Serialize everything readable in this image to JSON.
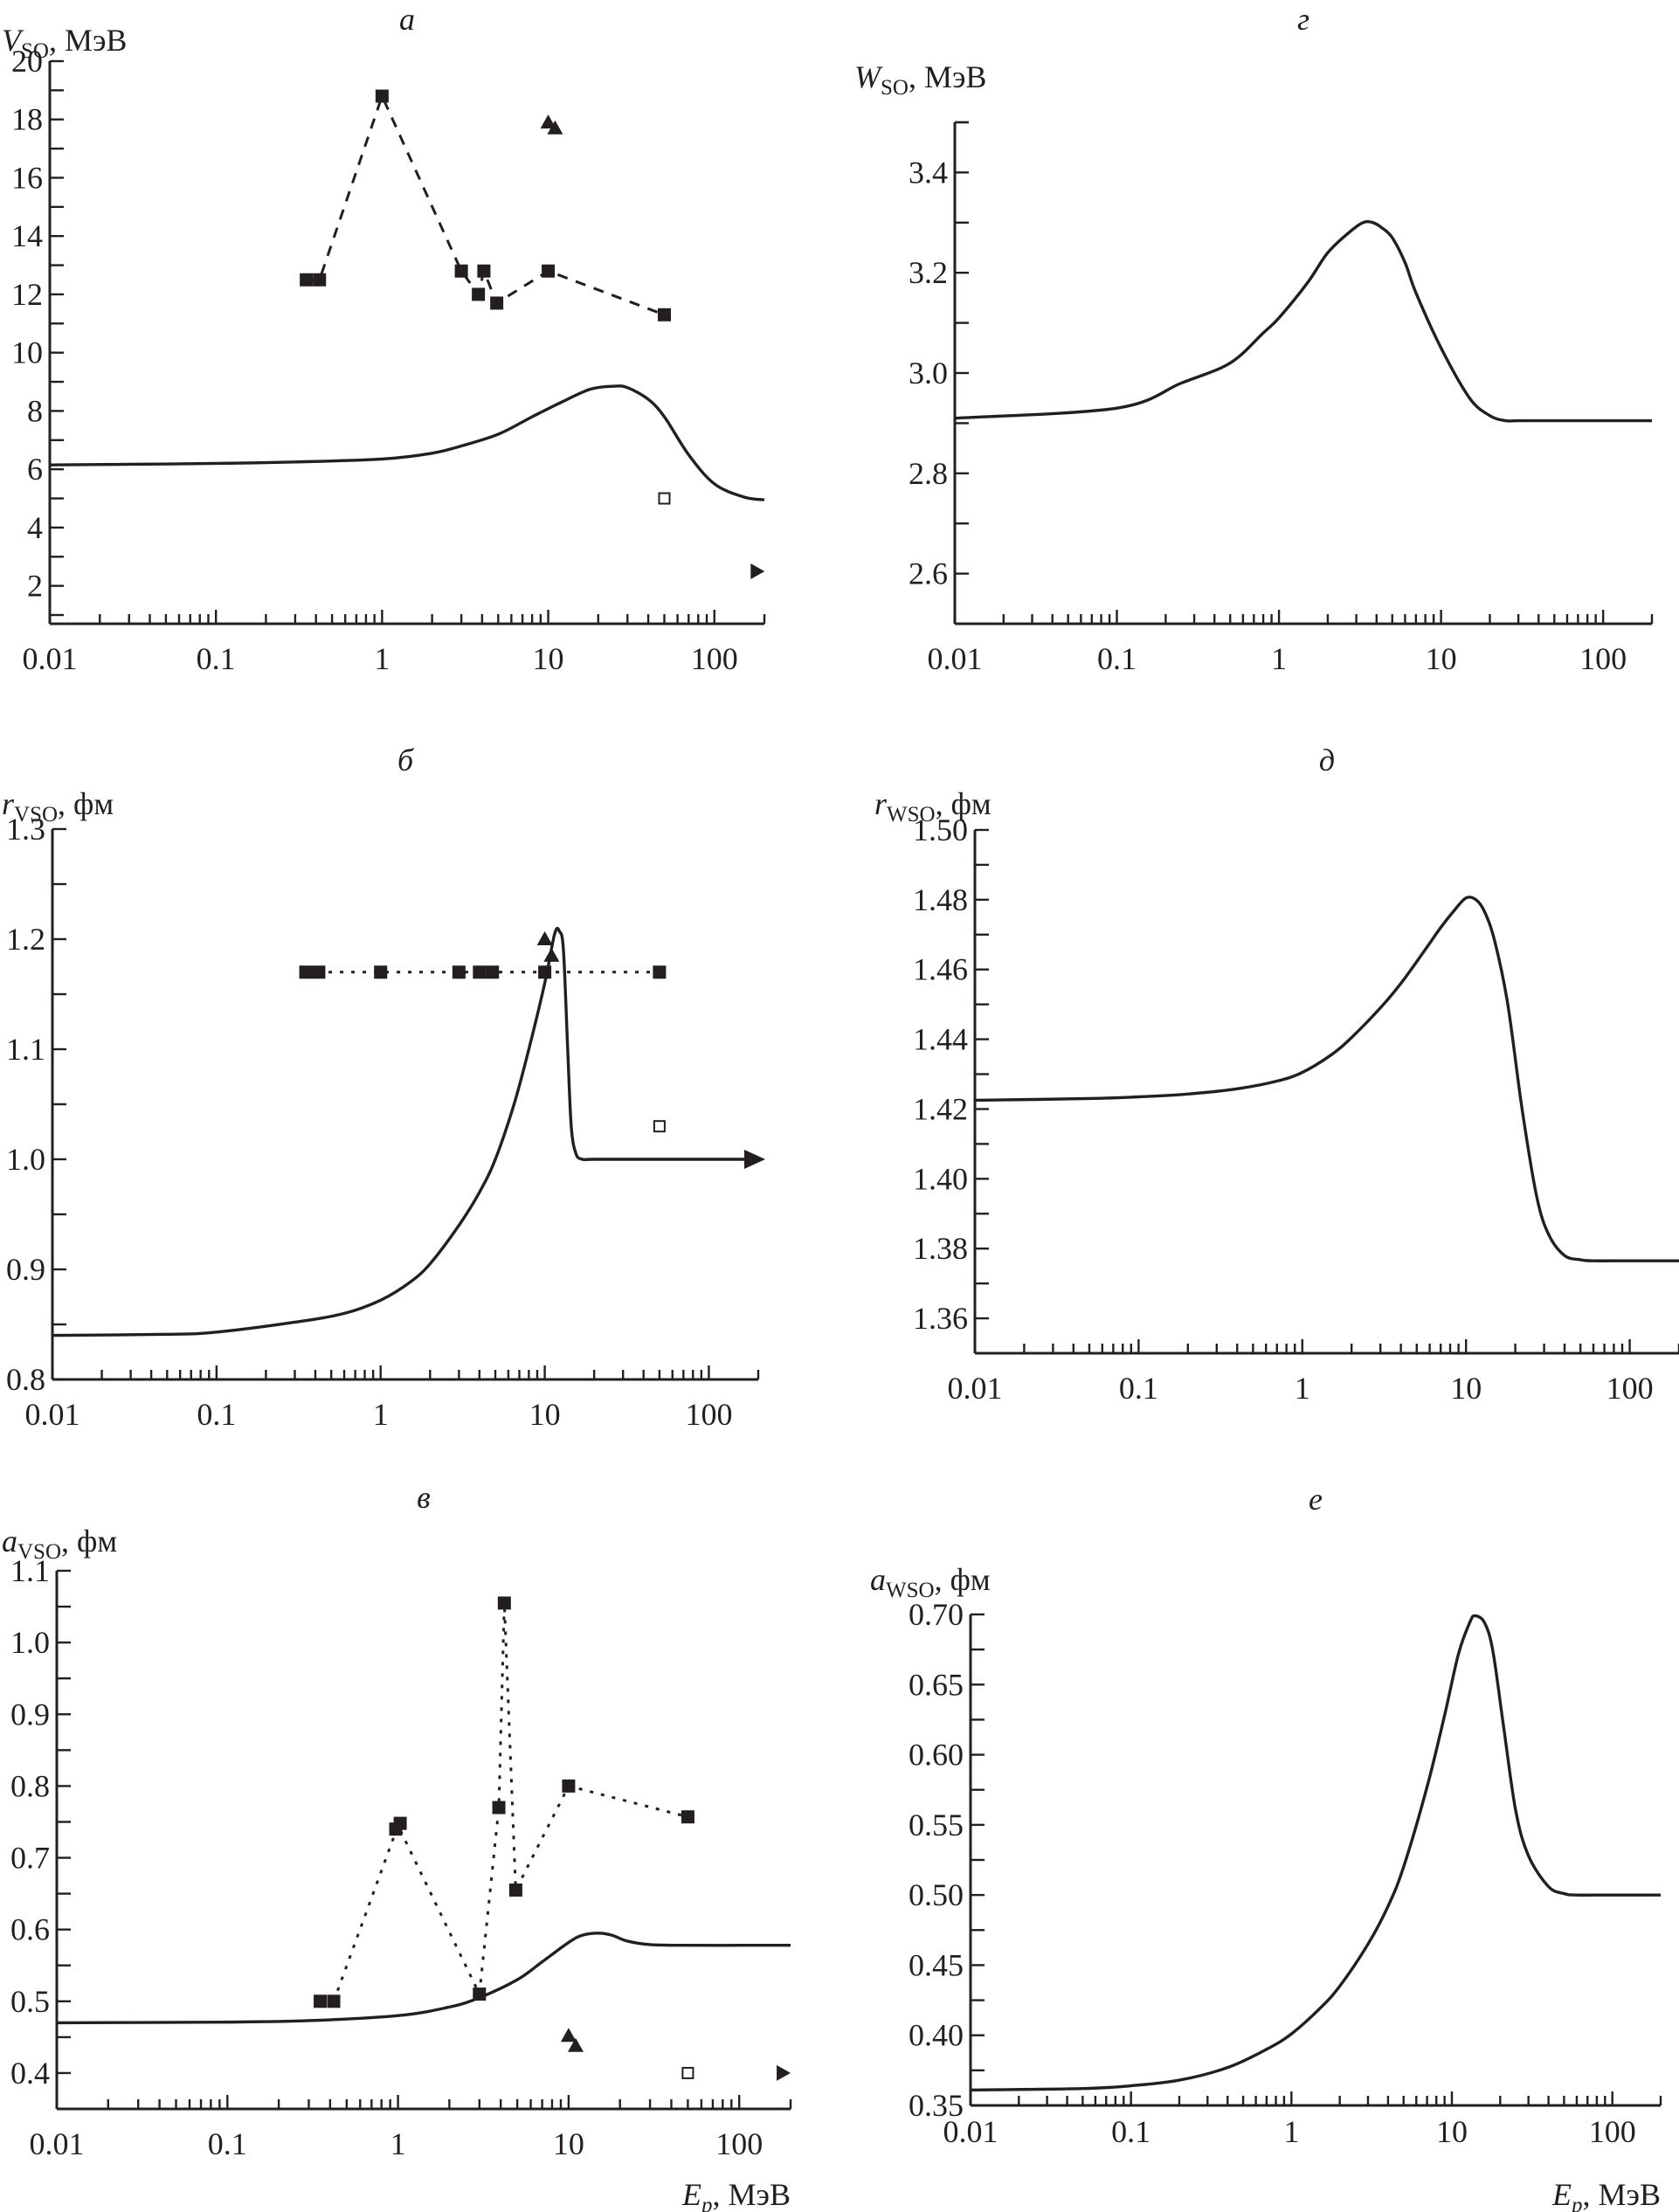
{
  "figure": {
    "panels": [
      "a",
      "g",
      "b",
      "d",
      "v",
      "e"
    ]
  },
  "chart_data": [
    {
      "id": "a",
      "type": "line",
      "panel_letter": "а",
      "ylabel_symbol": "V",
      "ylabel_sub": "SO",
      "ylabel_unit": ", МэВ",
      "xlabel_symbol": "",
      "xlabel_sub": "",
      "xlabel_unit": "",
      "xscale": "log",
      "xlim": [
        0.01,
        200
      ],
      "ylim": [
        0.7,
        20
      ],
      "xticks_major": [
        0.01,
        0.1,
        1,
        10,
        100
      ],
      "xtick_labels": [
        "0.01",
        "0.1",
        "1",
        "10",
        "100"
      ],
      "yticks_major": [
        2,
        4,
        6,
        8,
        10,
        12,
        14,
        16,
        18,
        20
      ],
      "ytick_labels": [
        "2",
        "4",
        "6",
        "8",
        "10",
        "12",
        "14",
        "16",
        "18",
        "20"
      ],
      "yticks_minor": [
        1,
        3,
        5,
        7,
        9,
        11,
        13,
        15,
        17,
        19
      ],
      "curve": {
        "name": "model",
        "x": [
          0.01,
          0.03,
          0.1,
          0.3,
          1,
          2,
          3,
          5,
          8,
          12,
          18,
          25,
          30,
          40,
          50,
          70,
          100,
          150,
          200
        ],
        "y": [
          6.15,
          6.17,
          6.2,
          6.25,
          6.35,
          6.55,
          6.8,
          7.2,
          7.8,
          8.3,
          8.75,
          8.85,
          8.8,
          8.4,
          7.8,
          6.5,
          5.5,
          5.05,
          4.95
        ]
      },
      "series": [
        {
          "name": "exp-squares",
          "marker": "filled-square",
          "line": "dashed",
          "x": [
            0.35,
            0.42,
            1.0,
            3.0,
            3.8,
            4.1,
            4.9,
            10,
            50
          ],
          "y": [
            12.5,
            12.5,
            18.8,
            12.8,
            12.0,
            12.8,
            11.7,
            12.8,
            11.3
          ],
          "path_order": [
            1,
            2,
            3,
            4,
            5,
            6,
            7,
            8,
            9
          ]
        },
        {
          "name": "exp-triangles",
          "marker": "filled-triangle-up",
          "line": "none",
          "x": [
            10,
            11
          ],
          "y": [
            17.9,
            17.7
          ]
        },
        {
          "name": "exp-open-square",
          "marker": "open-square",
          "line": "none",
          "x": [
            50
          ],
          "y": [
            5.0
          ]
        },
        {
          "name": "exp-right-triangle",
          "marker": "filled-triangle-right",
          "line": "none",
          "x": [
            180
          ],
          "y": [
            2.5
          ]
        }
      ]
    },
    {
      "id": "g",
      "type": "line",
      "panel_letter": "г",
      "ylabel_symbol": "W",
      "ylabel_sub": "SO",
      "ylabel_unit": ", МэВ",
      "xlabel_symbol": "",
      "xlabel_sub": "",
      "xlabel_unit": "",
      "xscale": "log",
      "xlim": [
        0.01,
        200
      ],
      "ylim": [
        2.5,
        3.5
      ],
      "xticks_major": [
        0.01,
        0.1,
        1,
        10,
        100
      ],
      "xtick_labels": [
        "0.01",
        "0.1",
        "1",
        "10",
        "100"
      ],
      "yticks_major": [
        2.6,
        2.8,
        3.0,
        3.2,
        3.4
      ],
      "ytick_labels": [
        "2.6",
        "2.8",
        "3.0",
        "3.2",
        "3.4"
      ],
      "yticks_minor": [
        2.7,
        2.9,
        3.1,
        3.3,
        3.5
      ],
      "curve": {
        "name": "model",
        "x": [
          0.01,
          0.1,
          0.25,
          0.5,
          0.8,
          1.0,
          1.5,
          2.0,
          2.7,
          3.3,
          3.8,
          4.3,
          5.0,
          6.0,
          7.0,
          10,
          15,
          20,
          25,
          30,
          50,
          100,
          200
        ],
        "y": [
          2.91,
          2.93,
          2.98,
          3.02,
          3.08,
          3.11,
          3.18,
          3.24,
          3.28,
          3.3,
          3.3,
          3.29,
          3.27,
          3.22,
          3.16,
          3.05,
          2.95,
          2.915,
          2.905,
          2.905,
          2.905,
          2.905,
          2.905
        ]
      },
      "series": []
    },
    {
      "id": "b",
      "type": "line",
      "panel_letter": "б",
      "ylabel_symbol": "r",
      "ylabel_sub": "VSO",
      "ylabel_unit": ", фм",
      "xlabel_symbol": "",
      "xlabel_sub": "",
      "xlabel_unit": "",
      "xscale": "log",
      "xlim": [
        0.01,
        200
      ],
      "ylim": [
        0.8,
        1.3
      ],
      "xticks_major": [
        0.01,
        0.1,
        1,
        10,
        100
      ],
      "xtick_labels": [
        "0.01",
        "0.1",
        "1",
        "10",
        "100"
      ],
      "yticks_major": [
        0.8,
        0.9,
        1.0,
        1.1,
        1.2,
        1.3
      ],
      "ytick_labels": [
        "0.8",
        "0.9",
        "1.0",
        "1.1",
        "1.2",
        "1.3"
      ],
      "yticks_minor": [
        0.85,
        0.95,
        1.05,
        1.15,
        1.25
      ],
      "curve": {
        "name": "model",
        "arrow_end": true,
        "x": [
          0.01,
          0.05,
          0.1,
          0.3,
          0.6,
          1.0,
          1.5,
          2.0,
          3.0,
          4.0,
          5.0,
          6.5,
          8.0,
          10,
          11.5,
          12.3,
          13.0,
          13.8,
          14.5,
          15.5,
          17,
          20,
          50,
          200
        ],
        "y": [
          0.84,
          0.841,
          0.843,
          0.852,
          0.86,
          0.872,
          0.888,
          0.905,
          0.94,
          0.97,
          1.0,
          1.05,
          1.1,
          1.16,
          1.205,
          1.207,
          1.19,
          1.1,
          1.03,
          1.005,
          1.0,
          1.0,
          1.0,
          1.0
        ]
      },
      "series": [
        {
          "name": "exp-squares",
          "marker": "filled-square",
          "line": "dotted",
          "x": [
            0.35,
            0.42,
            1.0,
            3.0,
            4.0,
            4.8,
            10,
            50
          ],
          "y": [
            1.17,
            1.17,
            1.17,
            1.17,
            1.17,
            1.17,
            1.17,
            1.17
          ]
        },
        {
          "name": "exp-triangles",
          "marker": "filled-triangle-up",
          "line": "none",
          "x": [
            10,
            11
          ],
          "y": [
            1.2,
            1.185
          ]
        },
        {
          "name": "exp-open-square",
          "marker": "open-square",
          "line": "none",
          "x": [
            50
          ],
          "y": [
            1.03
          ]
        }
      ]
    },
    {
      "id": "d",
      "type": "line",
      "panel_letter": "д",
      "ylabel_symbol": "r",
      "ylabel_sub": "WSO",
      "ylabel_unit": ", фм",
      "xlabel_symbol": "",
      "xlabel_sub": "",
      "xlabel_unit": "",
      "xscale": "log",
      "xlim": [
        0.01,
        200
      ],
      "ylim": [
        1.35,
        1.5
      ],
      "xticks_major": [
        0.01,
        0.1,
        1,
        10,
        100
      ],
      "xtick_labels": [
        "0.01",
        "0.1",
        "1",
        "10",
        "100"
      ],
      "yticks_major": [
        1.36,
        1.38,
        1.4,
        1.42,
        1.44,
        1.46,
        1.48,
        1.5
      ],
      "ytick_labels": [
        "1.36",
        "1.38",
        "1.40",
        "1.42",
        "1.44",
        "1.46",
        "1.48",
        "1.50"
      ],
      "yticks_minor": [
        1.37,
        1.39,
        1.41,
        1.43,
        1.45,
        1.47,
        1.49
      ],
      "curve": {
        "name": "model",
        "x": [
          0.01,
          0.05,
          0.1,
          0.2,
          0.4,
          0.7,
          1.0,
          1.5,
          2.0,
          3.0,
          4.0,
          5.5,
          7.0,
          8.5,
          10,
          11.5,
          13,
          15,
          18,
          22,
          27,
          32,
          40,
          50,
          60,
          100,
          200
        ],
        "y": [
          1.4225,
          1.423,
          1.4235,
          1.4243,
          1.4258,
          1.428,
          1.4305,
          1.4355,
          1.4405,
          1.449,
          1.456,
          1.465,
          1.472,
          1.477,
          1.4805,
          1.48,
          1.4765,
          1.468,
          1.45,
          1.42,
          1.395,
          1.384,
          1.378,
          1.3768,
          1.3765,
          1.3765,
          1.3765
        ]
      },
      "series": []
    },
    {
      "id": "v",
      "type": "line",
      "panel_letter": "в",
      "ylabel_symbol": "a",
      "ylabel_sub": "VSO",
      "ylabel_unit": ", фм",
      "xlabel_symbol": "E",
      "xlabel_sub": "p",
      "xlabel_unit": ", МэВ",
      "xscale": "log",
      "xlim": [
        0.01,
        200
      ],
      "ylim": [
        0.35,
        1.1
      ],
      "xticks_major": [
        0.01,
        0.1,
        1,
        10,
        100
      ],
      "xtick_labels": [
        "0.01",
        "0.1",
        "1",
        "10",
        "100"
      ],
      "yticks_major": [
        0.4,
        0.5,
        0.6,
        0.7,
        0.8,
        0.9,
        1.0,
        1.1
      ],
      "ytick_labels": [
        "0.4",
        "0.5",
        "0.6",
        "0.7",
        "0.8",
        "0.9",
        "1.0",
        "1.1"
      ],
      "yticks_minor": [
        0.45,
        0.55,
        0.65,
        0.75,
        0.85,
        0.95,
        1.05
      ],
      "curve": {
        "name": "model",
        "x": [
          0.01,
          0.1,
          0.3,
          1.0,
          2.0,
          3.0,
          5.0,
          7.0,
          10,
          12,
          15,
          18,
          22,
          30,
          50,
          100,
          200
        ],
        "y": [
          0.47,
          0.471,
          0.473,
          0.48,
          0.492,
          0.505,
          0.53,
          0.555,
          0.582,
          0.592,
          0.595,
          0.592,
          0.584,
          0.579,
          0.578,
          0.578,
          0.578
        ]
      },
      "series": [
        {
          "name": "exp-squares",
          "marker": "filled-square",
          "line": "dotted",
          "x": [
            0.35,
            0.42,
            0.97,
            1.03,
            3.0,
            4.2,
            3.9,
            4.9,
            10,
            50
          ],
          "y": [
            0.5,
            0.5,
            0.74,
            0.748,
            0.51,
            1.055,
            0.77,
            0.655,
            0.8,
            0.757
          ],
          "path": [
            [
              0.42,
              0.5
            ],
            [
              1.0,
              0.745
            ],
            [
              3.0,
              0.51
            ],
            [
              3.9,
              0.77
            ],
            [
              4.2,
              1.055
            ],
            [
              4.9,
              0.655
            ],
            [
              10,
              0.8
            ],
            [
              50,
              0.757
            ]
          ]
        },
        {
          "name": "exp-triangles",
          "marker": "filled-triangle-up",
          "line": "none",
          "x": [
            10,
            11
          ],
          "y": [
            0.452,
            0.438
          ]
        },
        {
          "name": "exp-open-square",
          "marker": "open-square",
          "line": "none",
          "x": [
            50
          ],
          "y": [
            0.4
          ]
        },
        {
          "name": "exp-right-triangle",
          "marker": "filled-triangle-right",
          "line": "none",
          "x": [
            180
          ],
          "y": [
            0.4
          ]
        }
      ]
    },
    {
      "id": "e",
      "type": "line",
      "panel_letter": "е",
      "ylabel_symbol": "a",
      "ylabel_sub": "WSO",
      "ylabel_unit": ", фм",
      "xlabel_symbol": "E",
      "xlabel_sub": "p",
      "xlabel_unit": ", МэВ",
      "xscale": "log",
      "xlim": [
        0.01,
        200
      ],
      "ylim": [
        0.35,
        0.7
      ],
      "xticks_major": [
        0.01,
        0.1,
        1,
        10,
        100
      ],
      "xtick_labels": [
        "0.01",
        "0.1",
        "1",
        "10",
        "100"
      ],
      "yticks_major": [
        0.35,
        0.4,
        0.45,
        0.5,
        0.55,
        0.6,
        0.65,
        0.7
      ],
      "ytick_labels": [
        "0.35",
        "0.40",
        "0.45",
        "0.50",
        "0.55",
        "0.60",
        "0.65",
        "0.70"
      ],
      "yticks_minor": [
        0.375,
        0.425,
        0.475,
        0.525,
        0.575,
        0.625,
        0.675
      ],
      "curve": {
        "name": "model",
        "x": [
          0.01,
          0.05,
          0.1,
          0.2,
          0.4,
          0.7,
          1.0,
          1.5,
          2.0,
          3.0,
          4.0,
          5.0,
          7.0,
          9.0,
          11,
          13,
          14,
          16,
          18,
          21,
          25,
          30,
          40,
          50,
          60,
          100,
          200
        ],
        "y": [
          0.361,
          0.362,
          0.364,
          0.368,
          0.377,
          0.39,
          0.401,
          0.419,
          0.435,
          0.465,
          0.492,
          0.52,
          0.577,
          0.628,
          0.672,
          0.695,
          0.699,
          0.694,
          0.674,
          0.62,
          0.56,
          0.528,
          0.506,
          0.501,
          0.5,
          0.5,
          0.5
        ]
      },
      "series": []
    }
  ]
}
